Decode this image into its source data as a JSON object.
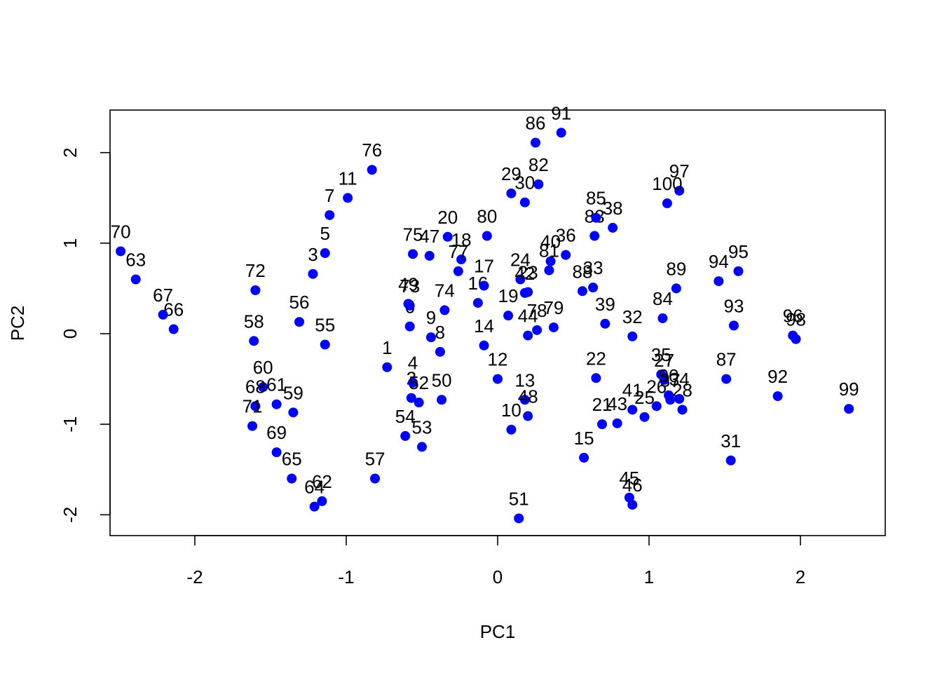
{
  "chart_data": {
    "type": "scatter",
    "title": "",
    "xlabel": "PC1",
    "ylabel": "PC2",
    "xlim": [
      -2.56,
      2.56
    ],
    "ylim": [
      -2.23,
      2.47
    ],
    "xticks": [
      -2,
      -1,
      0,
      1,
      2
    ],
    "yticks": [
      -2,
      -1,
      0,
      1,
      2
    ],
    "point_color": "#0000ff",
    "grid": false,
    "legend": "none",
    "points": [
      {
        "label": "1",
        "x": -0.73,
        "y": -0.37
      },
      {
        "label": "2",
        "x": -0.57,
        "y": -0.71
      },
      {
        "label": "3",
        "x": -1.22,
        "y": 0.66
      },
      {
        "label": "4",
        "x": -0.56,
        "y": -0.54
      },
      {
        "label": "5",
        "x": -1.14,
        "y": 0.89
      },
      {
        "label": "6",
        "x": -0.58,
        "y": 0.08
      },
      {
        "label": "7",
        "x": -1.11,
        "y": 1.31
      },
      {
        "label": "8",
        "x": -0.38,
        "y": -0.2
      },
      {
        "label": "9",
        "x": -0.44,
        "y": -0.04
      },
      {
        "label": "10",
        "x": 0.09,
        "y": -1.06
      },
      {
        "label": "11",
        "x": -0.99,
        "y": 1.5
      },
      {
        "label": "12",
        "x": 0.0,
        "y": -0.5
      },
      {
        "label": "13",
        "x": 0.18,
        "y": -0.73
      },
      {
        "label": "14",
        "x": -0.09,
        "y": -0.13
      },
      {
        "label": "15",
        "x": 0.57,
        "y": -1.37
      },
      {
        "label": "16",
        "x": -0.13,
        "y": 0.34
      },
      {
        "label": "17",
        "x": -0.09,
        "y": 0.53
      },
      {
        "label": "18",
        "x": -0.24,
        "y": 0.82
      },
      {
        "label": "19",
        "x": 0.07,
        "y": 0.2
      },
      {
        "label": "20",
        "x": -0.33,
        "y": 1.07
      },
      {
        "label": "21",
        "x": 0.69,
        "y": -1.0
      },
      {
        "label": "22",
        "x": 0.65,
        "y": -0.49
      },
      {
        "label": "23",
        "x": 0.2,
        "y": 0.46
      },
      {
        "label": "24",
        "x": 0.15,
        "y": 0.6
      },
      {
        "label": "25",
        "x": 0.97,
        "y": -0.92
      },
      {
        "label": "26",
        "x": 1.05,
        "y": -0.8
      },
      {
        "label": "27",
        "x": 1.1,
        "y": -0.51
      },
      {
        "label": "28",
        "x": 1.22,
        "y": -0.84
      },
      {
        "label": "29",
        "x": 0.09,
        "y": 1.55
      },
      {
        "label": "30",
        "x": 0.18,
        "y": 1.45
      },
      {
        "label": "31",
        "x": 1.54,
        "y": -1.4
      },
      {
        "label": "32",
        "x": 0.89,
        "y": -0.03
      },
      {
        "label": "33",
        "x": 0.63,
        "y": 0.51
      },
      {
        "label": "34",
        "x": 1.2,
        "y": -0.72
      },
      {
        "label": "35",
        "x": 1.08,
        "y": -0.45
      },
      {
        "label": "36",
        "x": 0.45,
        "y": 0.87
      },
      {
        "label": "37",
        "x": 1.14,
        "y": -0.73
      },
      {
        "label": "38",
        "x": 0.76,
        "y": 1.17
      },
      {
        "label": "39",
        "x": 0.71,
        "y": 0.11
      },
      {
        "label": "40",
        "x": 0.35,
        "y": 0.8
      },
      {
        "label": "41",
        "x": 0.89,
        "y": -0.84
      },
      {
        "label": "42",
        "x": 0.18,
        "y": 0.45
      },
      {
        "label": "43",
        "x": 0.79,
        "y": -0.99
      },
      {
        "label": "44",
        "x": 0.2,
        "y": -0.02
      },
      {
        "label": "45",
        "x": 0.87,
        "y": -1.81
      },
      {
        "label": "46",
        "x": 0.89,
        "y": -1.89
      },
      {
        "label": "47",
        "x": -0.45,
        "y": 0.86
      },
      {
        "label": "48",
        "x": 0.2,
        "y": -0.91
      },
      {
        "label": "49",
        "x": -0.59,
        "y": 0.33
      },
      {
        "label": "50",
        "x": -0.37,
        "y": -0.73
      },
      {
        "label": "51",
        "x": 0.14,
        "y": -2.04
      },
      {
        "label": "52",
        "x": -0.52,
        "y": -0.76
      },
      {
        "label": "53",
        "x": -0.5,
        "y": -1.25
      },
      {
        "label": "54",
        "x": -0.61,
        "y": -1.13
      },
      {
        "label": "55",
        "x": -1.14,
        "y": -0.12
      },
      {
        "label": "56",
        "x": -1.31,
        "y": 0.13
      },
      {
        "label": "57",
        "x": -0.81,
        "y": -1.6
      },
      {
        "label": "58",
        "x": -1.61,
        "y": -0.08
      },
      {
        "label": "59",
        "x": -1.35,
        "y": -0.87
      },
      {
        "label": "60",
        "x": -1.55,
        "y": -0.59
      },
      {
        "label": "61",
        "x": -1.46,
        "y": -0.78
      },
      {
        "label": "62",
        "x": -1.16,
        "y": -1.85
      },
      {
        "label": "63",
        "x": -2.39,
        "y": 0.6
      },
      {
        "label": "64",
        "x": -1.21,
        "y": -1.91
      },
      {
        "label": "65",
        "x": -1.36,
        "y": -1.6
      },
      {
        "label": "66",
        "x": -2.14,
        "y": 0.05
      },
      {
        "label": "67",
        "x": -2.21,
        "y": 0.21
      },
      {
        "label": "68",
        "x": -1.6,
        "y": -0.8
      },
      {
        "label": "69",
        "x": -1.46,
        "y": -1.31
      },
      {
        "label": "70",
        "x": -2.49,
        "y": 0.91
      },
      {
        "label": "71",
        "x": -1.62,
        "y": -1.02
      },
      {
        "label": "72",
        "x": -1.6,
        "y": 0.48
      },
      {
        "label": "73",
        "x": -0.58,
        "y": 0.31
      },
      {
        "label": "74",
        "x": -0.35,
        "y": 0.26
      },
      {
        "label": "75",
        "x": -0.56,
        "y": 0.88
      },
      {
        "label": "76",
        "x": -0.83,
        "y": 1.81
      },
      {
        "label": "77",
        "x": -0.26,
        "y": 0.69
      },
      {
        "label": "78",
        "x": 0.26,
        "y": 0.04
      },
      {
        "label": "79",
        "x": 0.37,
        "y": 0.07
      },
      {
        "label": "80",
        "x": -0.07,
        "y": 1.08
      },
      {
        "label": "81",
        "x": 0.34,
        "y": 0.7
      },
      {
        "label": "82",
        "x": 0.27,
        "y": 1.65
      },
      {
        "label": "83",
        "x": 0.64,
        "y": 1.08
      },
      {
        "label": "84",
        "x": 1.09,
        "y": 0.17
      },
      {
        "label": "85",
        "x": 0.65,
        "y": 1.28
      },
      {
        "label": "86",
        "x": 0.25,
        "y": 2.11
      },
      {
        "label": "87",
        "x": 1.51,
        "y": -0.5
      },
      {
        "label": "88",
        "x": 0.56,
        "y": 0.47
      },
      {
        "label": "89",
        "x": 1.18,
        "y": 0.5
      },
      {
        "label": "90",
        "x": 1.13,
        "y": -0.68
      },
      {
        "label": "91",
        "x": 0.42,
        "y": 2.22
      },
      {
        "label": "92",
        "x": 1.85,
        "y": -0.69
      },
      {
        "label": "93",
        "x": 1.56,
        "y": 0.09
      },
      {
        "label": "94",
        "x": 1.46,
        "y": 0.58
      },
      {
        "label": "95",
        "x": 1.59,
        "y": 0.69
      },
      {
        "label": "96",
        "x": 1.95,
        "y": -0.02
      },
      {
        "label": "97",
        "x": 1.2,
        "y": 1.58
      },
      {
        "label": "98",
        "x": 1.97,
        "y": -0.06
      },
      {
        "label": "99",
        "x": 2.32,
        "y": -0.83
      },
      {
        "label": "100",
        "x": 1.12,
        "y": 1.44
      }
    ]
  }
}
